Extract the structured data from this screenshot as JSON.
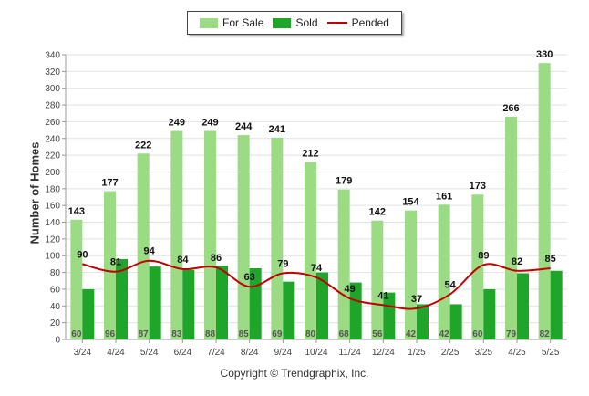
{
  "legend": {
    "for_sale": "For Sale",
    "sold": "Sold",
    "pended": "Pended"
  },
  "footer": "Copyright © Trendgraphix, Inc.",
  "chart_data": {
    "type": "bar",
    "categories": [
      "3/24",
      "4/24",
      "5/24",
      "6/24",
      "7/24",
      "8/24",
      "9/24",
      "10/24",
      "11/24",
      "12/24",
      "1/25",
      "2/25",
      "3/25",
      "4/25",
      "5/25"
    ],
    "series": [
      {
        "name": "For Sale",
        "kind": "bar",
        "color": "#9bdb84",
        "values": [
          143,
          177,
          222,
          249,
          249,
          244,
          241,
          212,
          179,
          142,
          154,
          161,
          173,
          266,
          330
        ]
      },
      {
        "name": "Sold",
        "kind": "bar",
        "color": "#1ea52a",
        "values": [
          60,
          96,
          87,
          83,
          88,
          85,
          69,
          80,
          68,
          56,
          42,
          42,
          60,
          79,
          82
        ]
      },
      {
        "name": "Pended",
        "kind": "line",
        "color": "#c00000",
        "values": [
          90,
          81,
          94,
          84,
          86,
          63,
          79,
          74,
          49,
          41,
          37,
          54,
          89,
          82,
          85
        ]
      }
    ],
    "ylabel": "Number of Homes",
    "xlabel": "",
    "ylim": [
      0,
      340
    ],
    "yticks": [
      0,
      20,
      40,
      60,
      80,
      100,
      120,
      140,
      160,
      180,
      200,
      220,
      240,
      260,
      280,
      300,
      320,
      340
    ],
    "grid": true,
    "legend_position": "top-center"
  }
}
